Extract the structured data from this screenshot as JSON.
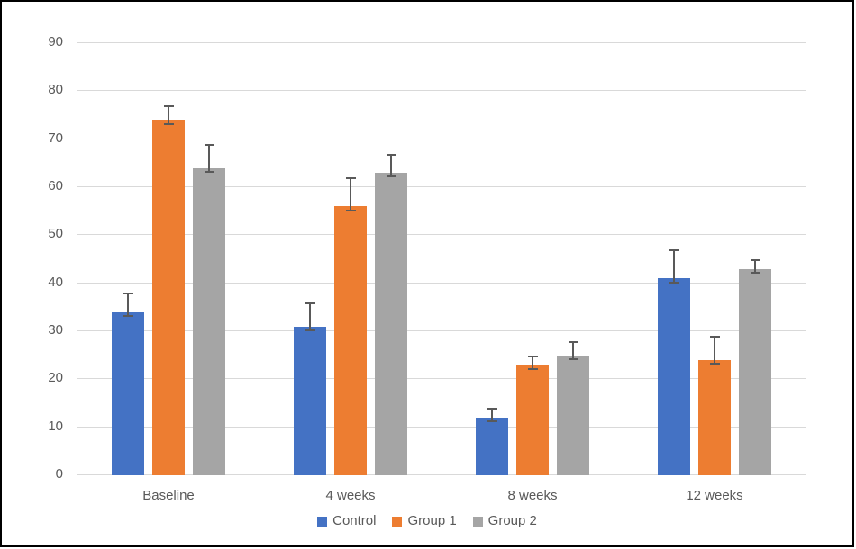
{
  "chart_data": {
    "type": "bar",
    "title": "",
    "xlabel": "",
    "ylabel": "",
    "categories": [
      "Baseline",
      "4 weeks",
      "8 weeks",
      "12 weeks"
    ],
    "series": [
      {
        "name": "Control",
        "color": "#4472C4",
        "values": [
          34,
          31,
          12,
          41
        ],
        "errors_plus": [
          4,
          5,
          2,
          6
        ],
        "errors_minus": [
          1,
          1,
          1,
          1
        ]
      },
      {
        "name": "Group 1",
        "color": "#ED7D31",
        "values": [
          74,
          56,
          23,
          24
        ],
        "errors_plus": [
          3,
          6,
          2,
          5
        ],
        "errors_minus": [
          1,
          1,
          1,
          1
        ]
      },
      {
        "name": "Group 2",
        "color": "#A5A5A5",
        "values": [
          64,
          63,
          25,
          43
        ],
        "errors_plus": [
          5,
          4,
          3,
          2
        ],
        "errors_minus": [
          1,
          1,
          1,
          1
        ]
      }
    ],
    "ylim": [
      0,
      90
    ],
    "ytick_step": 10,
    "ytick_labels": [
      "0",
      "10",
      "20",
      "30",
      "40",
      "50",
      "60",
      "70",
      "80",
      "90"
    ],
    "grid": true,
    "legend_position": "bottom",
    "colors": {
      "gridline": "#D9D9D9",
      "axis_line": "#D9D9D9",
      "tick_text": "#595959",
      "error_bar": "#595959",
      "plot_background": "#FFFFFF",
      "frame_border": "#000000"
    }
  },
  "legend": {
    "items": [
      {
        "label": "Control",
        "color": "#4472C4"
      },
      {
        "label": "Group 1",
        "color": "#ED7D31"
      },
      {
        "label": "Group 2",
        "color": "#A5A5A5"
      }
    ]
  }
}
